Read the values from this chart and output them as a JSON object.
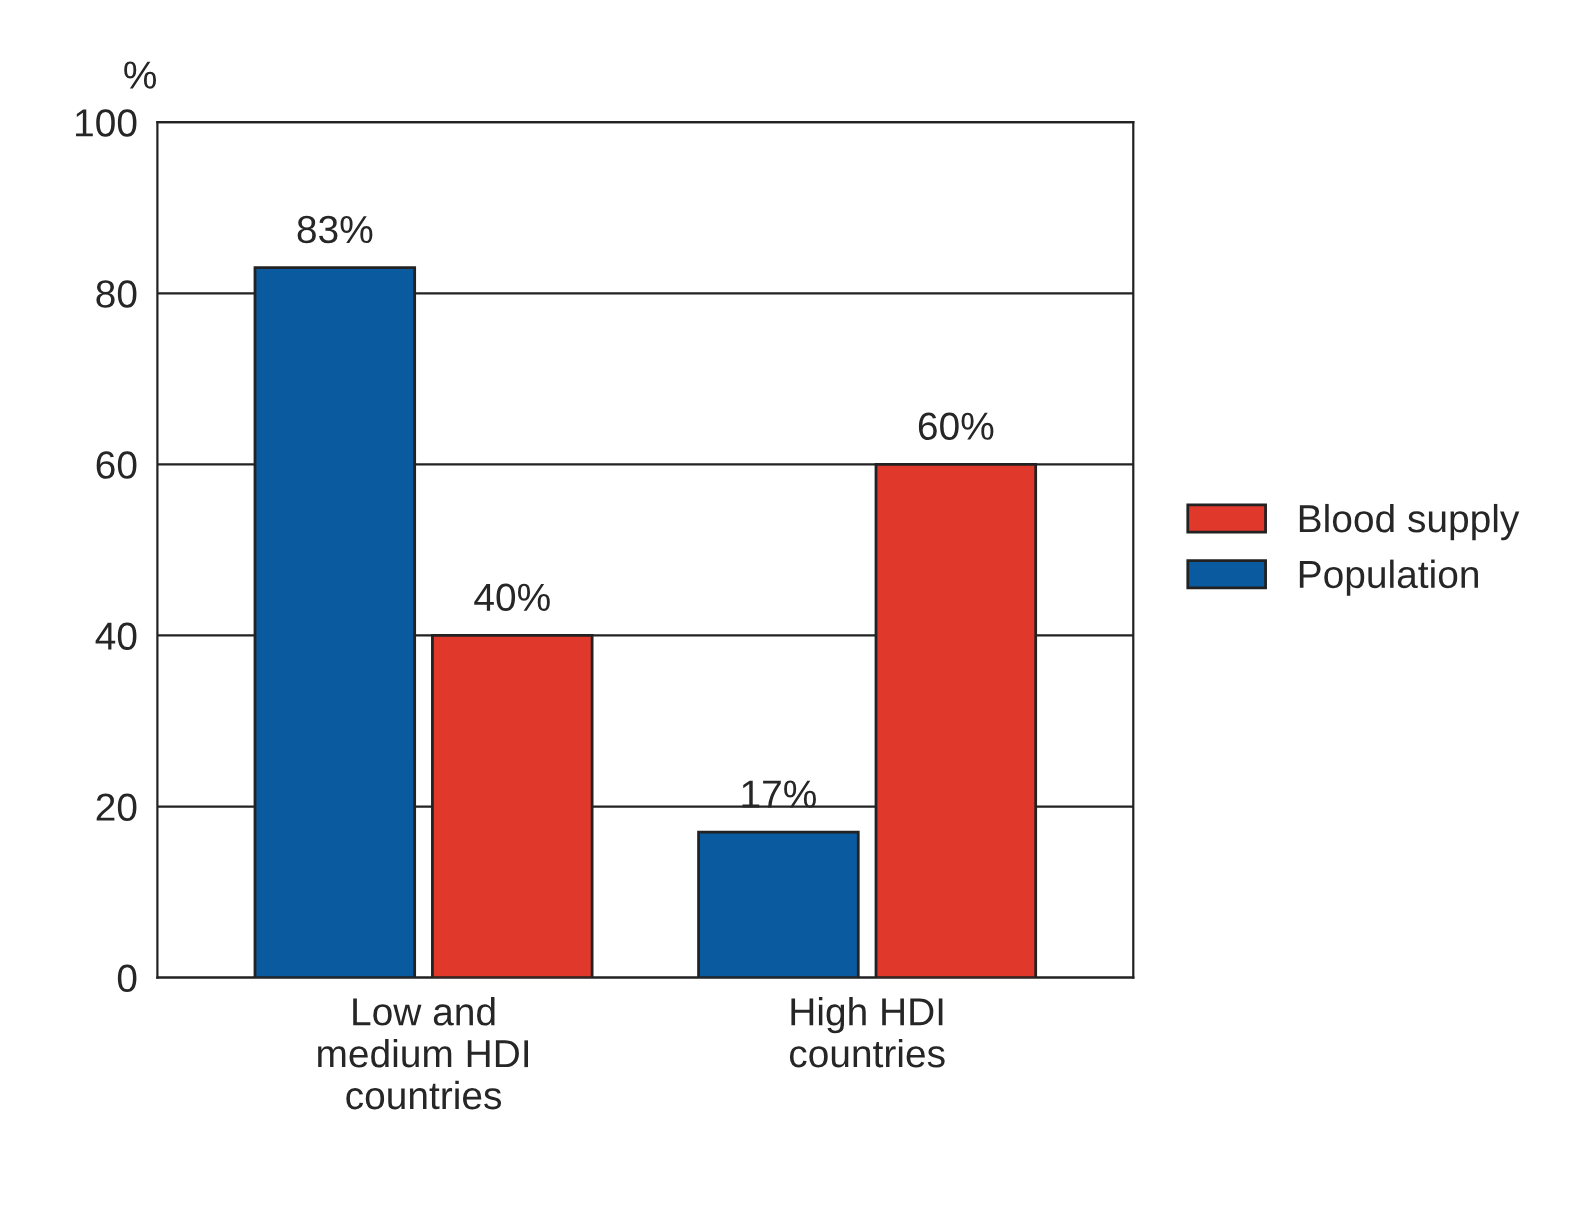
{
  "chart_data": {
    "type": "bar",
    "ylabel": "%",
    "categories": [
      "Low and\nmedium HDI\ncountries",
      "High HDI\ncountries"
    ],
    "series": [
      {
        "name": "Population",
        "color": "#0a5aa0",
        "values": [
          83,
          17
        ],
        "value_labels": [
          "83%",
          "17%"
        ]
      },
      {
        "name": "Blood supply",
        "color": "#e0392b",
        "values": [
          40,
          60
        ],
        "value_labels": [
          "40%",
          "60%"
        ]
      }
    ],
    "ylim": [
      0,
      100
    ],
    "yticks": [
      0,
      20,
      40,
      60,
      80,
      100
    ],
    "grid": "y",
    "legend": "right"
  }
}
